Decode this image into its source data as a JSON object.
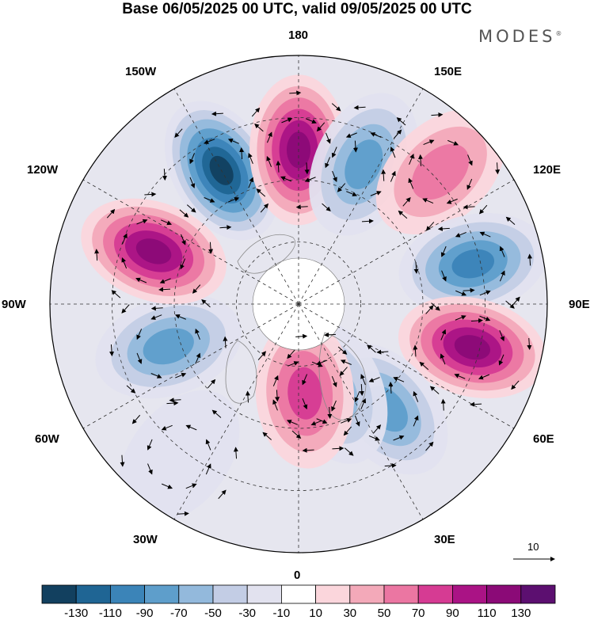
{
  "header": {
    "title": "Base 06/05/2025 00 UTC, valid 09/05/2025 00 UTC",
    "brand": "MODES"
  },
  "map": {
    "projection": "north-polar-stereographic",
    "longitude_labels": {
      "lon_180": "180",
      "lon_150e": "150E",
      "lon_120e": "120E",
      "lon_90e": "90E",
      "lon_60e": "60E",
      "lon_30e": "30E",
      "lon_0": "0",
      "lon_30w": "30W",
      "lon_60w": "60W",
      "lon_90w": "90W",
      "lon_120w": "120W",
      "lon_150w": "150W"
    },
    "vector_reference": "10"
  },
  "colorbar": {
    "labels": [
      "-130",
      "-110",
      "-90",
      "-70",
      "-50",
      "-30",
      "-10",
      "10",
      "30",
      "50",
      "70",
      "90",
      "110",
      "130"
    ],
    "colors": [
      "#12405f",
      "#1f6594",
      "#3b84b8",
      "#5e9ecb",
      "#93b9dc",
      "#c3cde5",
      "#e2e2ef",
      "#ffffff",
      "#fbd6dc",
      "#f3a9b9",
      "#eb76a2",
      "#d63b93",
      "#aa1385",
      "#8b0a77",
      "#5c0f70"
    ]
  },
  "anomalies": [
    {
      "name": "blue-150w",
      "value": -130,
      "lon": -150,
      "r": 0.62
    },
    {
      "name": "red-180",
      "value": 120,
      "lon": 180,
      "r": 0.62
    },
    {
      "name": "blue-155e",
      "value": -70,
      "lon": 155,
      "r": 0.62
    },
    {
      "name": "red-130e",
      "value": 60,
      "lon": 133,
      "r": 0.78
    },
    {
      "name": "blue-105e",
      "value": -90,
      "lon": 103,
      "r": 0.72
    },
    {
      "name": "red-80e",
      "value": 120,
      "lon": 76,
      "r": 0.72
    },
    {
      "name": "blue-40e",
      "value": -70,
      "lon": 40,
      "r": 0.55
    },
    {
      "name": "blue-20e",
      "value": -50,
      "lon": 22,
      "r": 0.38
    },
    {
      "name": "red-5e",
      "value": 80,
      "lon": 4,
      "r": 0.36
    },
    {
      "name": "blue-75w",
      "value": -70,
      "lon": -72,
      "r": 0.55
    },
    {
      "name": "red-110w",
      "value": 120,
      "lon": -110,
      "r": 0.62
    },
    {
      "name": "gray-40w",
      "value": -20,
      "lon": -38,
      "r": 0.78
    }
  ]
}
